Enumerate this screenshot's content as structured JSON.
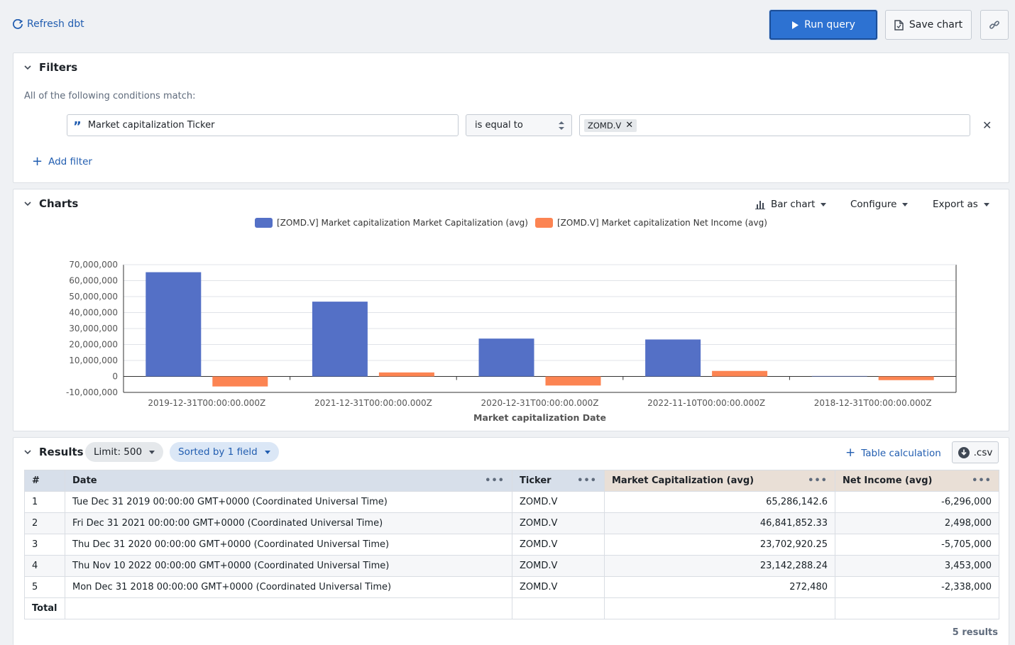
{
  "topbar": {
    "refresh_label": "Refresh dbt",
    "run_label": "Run query",
    "save_label": "Save chart"
  },
  "filters": {
    "title": "Filters",
    "conditions_label": "All of the following conditions match:",
    "field": "Market capitalization Ticker",
    "operator": "is equal to",
    "value_tag": "ZOMD.V",
    "add_label": "Add filter"
  },
  "charts": {
    "title": "Charts",
    "chart_type_label": "Bar chart",
    "configure_label": "Configure",
    "export_label": "Export as"
  },
  "chart_data": {
    "type": "bar",
    "categories": [
      "2019-12-31T00:00:00.000Z",
      "2021-12-31T00:00:00.000Z",
      "2020-12-31T00:00:00.000Z",
      "2022-11-10T00:00:00.000Z",
      "2018-12-31T00:00:00.000Z"
    ],
    "series": [
      {
        "name": "[ZOMD.V] Market capitalization Market Capitalization (avg)",
        "color": "#5470c6",
        "values": [
          65286142.6,
          46841852.33,
          23702920.25,
          23142288.24,
          272480
        ]
      },
      {
        "name": "[ZOMD.V] Market capitalization Net Income (avg)",
        "color": "#fc8452",
        "values": [
          -6296000,
          2498000,
          -5705000,
          3453000,
          -2338000
        ]
      }
    ],
    "xlabel": "Market capitalization Date",
    "ylabel": "",
    "ylim": [
      -10000000,
      70000000
    ],
    "yticks": [
      "70,000,000",
      "60,000,000",
      "50,000,000",
      "40,000,000",
      "30,000,000",
      "20,000,000",
      "10,000,000",
      "0",
      "-10,000,000"
    ],
    "legend_position": "top",
    "grid": true
  },
  "results": {
    "title": "Results",
    "limit_label": "Limit: 500",
    "sorted_label": "Sorted by 1 field",
    "table_calc_label": "Table calculation",
    "csv_label": ".csv",
    "headers": [
      "#",
      "Date",
      "Ticker",
      "Market Capitalization (avg)",
      "Net Income (avg)"
    ],
    "rows": [
      [
        "1",
        "Tue Dec 31 2019 00:00:00 GMT+0000 (Coordinated Universal Time)",
        "ZOMD.V",
        "65,286,142.6",
        "-6,296,000"
      ],
      [
        "2",
        "Fri Dec 31 2021 00:00:00 GMT+0000 (Coordinated Universal Time)",
        "ZOMD.V",
        "46,841,852.33",
        "2,498,000"
      ],
      [
        "3",
        "Thu Dec 31 2020 00:00:00 GMT+0000 (Coordinated Universal Time)",
        "ZOMD.V",
        "23,702,920.25",
        "-5,705,000"
      ],
      [
        "4",
        "Thu Nov 10 2022 00:00:00 GMT+0000 (Coordinated Universal Time)",
        "ZOMD.V",
        "23,142,288.24",
        "3,453,000"
      ],
      [
        "5",
        "Mon Dec 31 2018 00:00:00 GMT+0000 (Coordinated Universal Time)",
        "ZOMD.V",
        "272,480",
        "-2,338,000"
      ]
    ],
    "total_label": "Total",
    "count_label": "5 results"
  }
}
